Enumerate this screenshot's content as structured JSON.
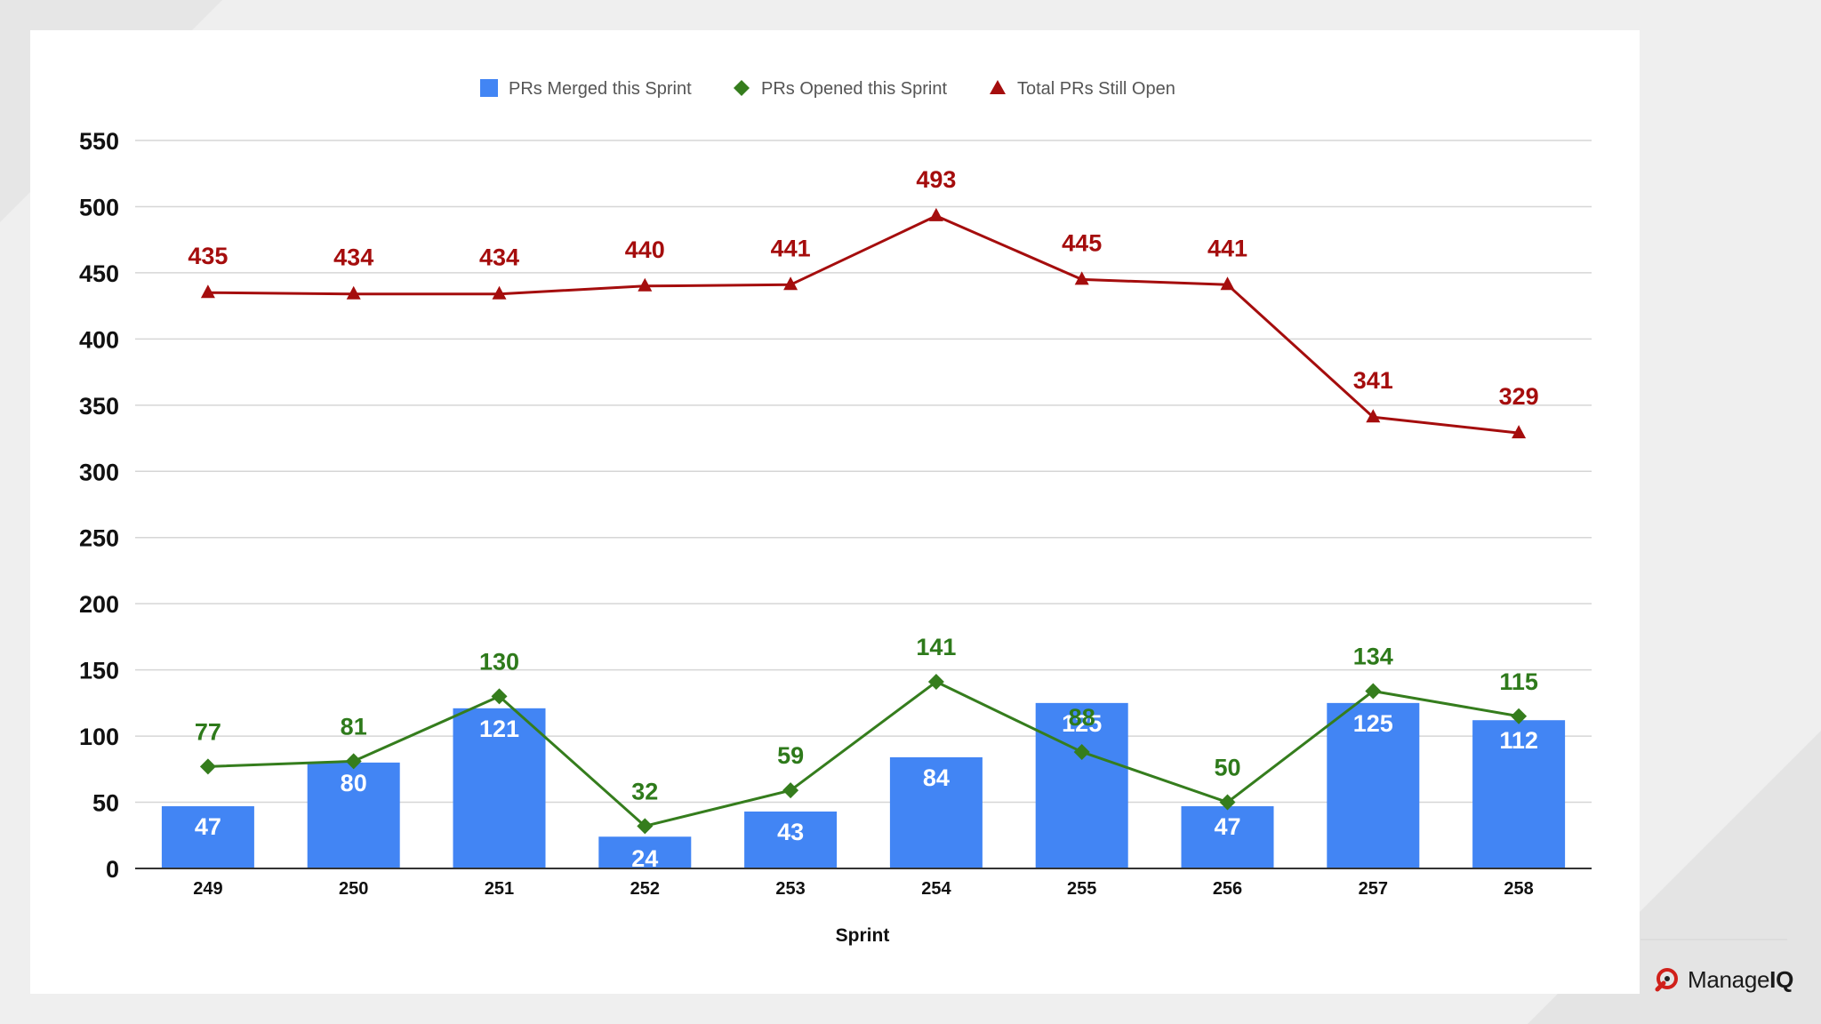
{
  "brand": {
    "name_light": "Manage",
    "name_bold": "IQ"
  },
  "colors": {
    "merged": "#4285f4",
    "opened": "#357d1d",
    "total": "#a50d0d"
  },
  "chart_data": {
    "type": "bar",
    "title": "",
    "xlabel": "Sprint",
    "ylabel": "",
    "ylim": [
      0,
      550
    ],
    "yticks": [
      0,
      50,
      100,
      150,
      200,
      250,
      300,
      350,
      400,
      450,
      500,
      550
    ],
    "grid": true,
    "legend_position": "top-center",
    "categories": [
      "249",
      "250",
      "251",
      "252",
      "253",
      "254",
      "255",
      "256",
      "257",
      "258"
    ],
    "series": [
      {
        "name": "PRs Merged this Sprint",
        "type": "bar",
        "marker": "square",
        "color": "#4285f4",
        "values": [
          47,
          80,
          121,
          24,
          43,
          84,
          125,
          47,
          125,
          112
        ]
      },
      {
        "name": "PRs Opened this Sprint",
        "type": "line",
        "marker": "diamond",
        "color": "#357d1d",
        "values": [
          77,
          81,
          130,
          32,
          59,
          141,
          88,
          50,
          134,
          115
        ]
      },
      {
        "name": "Total PRs Still Open",
        "type": "line",
        "marker": "triangle",
        "color": "#a50d0d",
        "values": [
          435,
          434,
          434,
          440,
          441,
          493,
          445,
          441,
          341,
          329
        ]
      }
    ]
  }
}
